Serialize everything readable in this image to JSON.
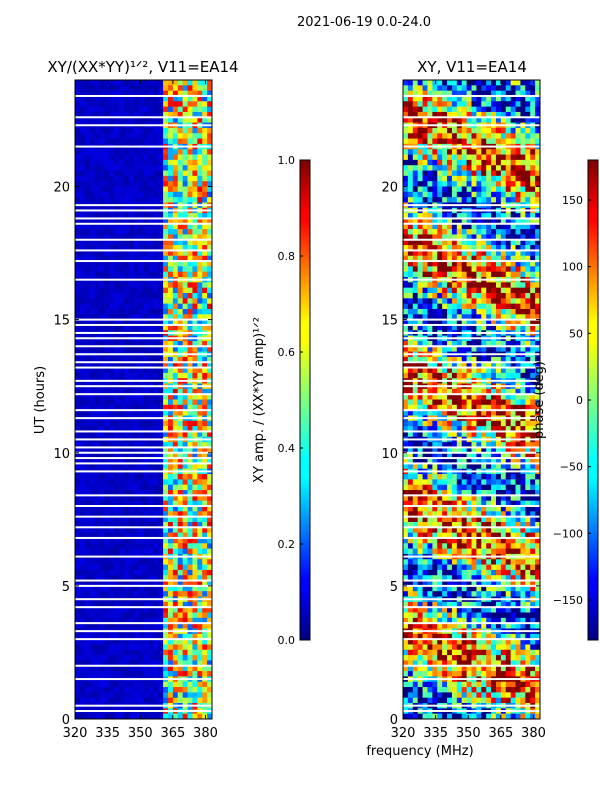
{
  "figure_title": "2021-06-19 0.0-24.0",
  "common_xlabel": "frequency (MHz)",
  "left_panel": {
    "title": "XY/(XX*YY)¹ᐟ², V11=EA14",
    "ylabel": "UT (hours)",
    "colorbar_label": "XY amp. / (XX*YY amp)¹ᐟ²"
  },
  "right_panel": {
    "title": "XY, V11=EA14",
    "colorbar_label": "phase (deg)"
  },
  "colors": {
    "axis": "#000000",
    "background": "#ffffff",
    "jet_low": "#00007f",
    "jet_high": "#7f0000"
  },
  "chart_data": [
    {
      "type": "heatmap",
      "name": "normalized-amplitude",
      "title": "XY/(XX*YY)^1/2, V11=EA14",
      "xlabel": "frequency (MHz)",
      "ylabel": "UT (hours)",
      "xlim": [
        320,
        383
      ],
      "ylim": [
        0,
        24
      ],
      "x_ticks": [
        320,
        335,
        350,
        365,
        380
      ],
      "y_ticks": [
        0,
        5,
        10,
        15,
        20
      ],
      "colormap": "jet",
      "colorbar": {
        "label": "XY amp. / (XX*YY amp)^1/2",
        "range": [
          0.0,
          1.0
        ],
        "ticks": [
          "0.0",
          "0.2",
          "0.4",
          "0.6",
          "0.8",
          "1.0"
        ]
      },
      "description_values": {
        "background_level": 0.05,
        "active_band_mhz": [
          360,
          383
        ],
        "peak_level": 0.85
      },
      "flagged_times": [
        0.3,
        0.5,
        1.5,
        2.0,
        3.0,
        3.3,
        3.6,
        4.2,
        4.5,
        5.0,
        5.2,
        6.1,
        6.8,
        7.2,
        7.6,
        8.0,
        8.4,
        9.3,
        9.6,
        9.8,
        10.0,
        10.2,
        10.5,
        10.8,
        11.3,
        11.6,
        12.2,
        12.5,
        12.7,
        13.2,
        13.4,
        13.7,
        14.0,
        14.3,
        14.5,
        14.8,
        15.0,
        16.5,
        17.2,
        17.6,
        18.0,
        18.6,
        18.8,
        19.1,
        19.3,
        21.5,
        22.3,
        22.6,
        23.4
      ]
    },
    {
      "type": "heatmap",
      "name": "xy-phase",
      "title": "XY, V11=EA14",
      "xlabel": "frequency (MHz)",
      "ylabel": "",
      "xlim": [
        320,
        383
      ],
      "ylim": [
        0,
        24
      ],
      "x_ticks": [
        320,
        335,
        350,
        365,
        380
      ],
      "y_ticks": [
        0,
        5,
        10,
        15,
        20
      ],
      "colormap": "jet",
      "colorbar": {
        "label": "phase (deg)",
        "range": [
          -180,
          180
        ],
        "ticks": [
          "−150",
          "−100",
          "−50",
          "0",
          "50",
          "100",
          "150"
        ],
        "tick_values": [
          -150,
          -100,
          -50,
          0,
          50,
          100,
          150
        ]
      },
      "flagged_times": [
        0.3,
        0.5,
        1.5,
        2.0,
        3.0,
        3.3,
        3.6,
        4.2,
        4.5,
        5.0,
        5.2,
        6.1,
        6.8,
        7.2,
        7.6,
        8.0,
        8.4,
        9.3,
        9.6,
        9.8,
        10.0,
        10.2,
        10.5,
        10.8,
        11.3,
        11.6,
        12.2,
        12.5,
        12.7,
        13.2,
        13.4,
        13.7,
        14.0,
        14.3,
        14.5,
        14.8,
        15.0,
        16.5,
        17.2,
        17.6,
        18.0,
        18.6,
        18.8,
        19.1,
        19.3,
        21.5,
        22.3,
        22.6,
        23.4
      ]
    }
  ]
}
